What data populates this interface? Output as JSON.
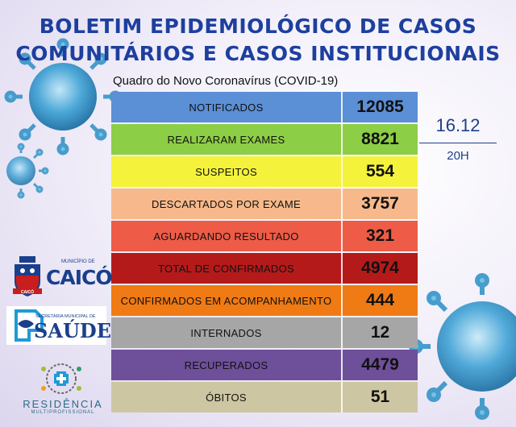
{
  "header": {
    "line1": "BOLETIM EPIDEMIOLÓGICO DE CASOS",
    "line2": "COMUNITÁRIOS E CASOS INSTITUCIONAIS",
    "subtitle": "Quadro do Novo Coronavírus (COVID-19)"
  },
  "date": "16.12",
  "time": "20H",
  "rows": [
    {
      "label": "NOTIFICADOS",
      "value": "12085",
      "color": "#5b8fd6"
    },
    {
      "label": "REALIZARAM EXAMES",
      "value": "8821",
      "color": "#8cce46"
    },
    {
      "label": "SUSPEITOS",
      "value": "554",
      "color": "#f4f23a"
    },
    {
      "label": "DESCARTADOS POR EXAME",
      "value": "3757",
      "color": "#f7b98b"
    },
    {
      "label": "AGUARDANDO RESULTADO",
      "value": "321",
      "color": "#ee5b46"
    },
    {
      "label": "TOTAL DE CONFIRMADOS",
      "value": "4974",
      "color": "#b51a1a"
    },
    {
      "label": "CONFIRMADOS EM ACOMPANHAMENTO",
      "value": "444",
      "color": "#f07a14"
    },
    {
      "label": "INTERNADOS",
      "value": "12",
      "color": "#a6a6a6"
    },
    {
      "label": "RECUPERADOS",
      "value": "4479",
      "color": "#6e4f9a"
    },
    {
      "label": "ÓBITOS",
      "value": "51",
      "color": "#cdc6a2"
    }
  ],
  "logos": {
    "caico_small": "MUNICÍPIO DE",
    "caico_big": "CAICÓ",
    "caico_banner": "CAICÓ",
    "saude_small": "SECRETARIA MUNICIPAL DE",
    "saude_big": "SAÚDE",
    "residencia_big": "RESIDÊNCIA",
    "residencia_small": "MULTIPROFISSIONAL"
  }
}
